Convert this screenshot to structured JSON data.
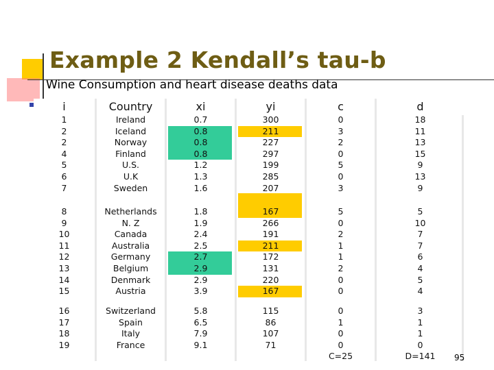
{
  "title": "Example 2   Kendall’s tau-b",
  "subtitle": "Wine Consumption and heart disease deaths data",
  "page_number": "95",
  "colors": {
    "title": "#6e5d14",
    "highlight_yellow": "#ffcc00",
    "highlight_green": "#33cc99"
  },
  "table": {
    "headers": [
      "i",
      "Country",
      "xi",
      "yi",
      "c",
      "d"
    ],
    "rows": [
      [
        "1",
        "Ireland",
        "0.7",
        "300",
        "0",
        "18"
      ],
      [
        "2",
        "Iceland",
        "0.8",
        "211",
        "3",
        "11"
      ],
      [
        "2",
        "Norway",
        "0.8",
        "227",
        "2",
        "13"
      ],
      [
        "4",
        "Finland",
        "0.8",
        "297",
        "0",
        "15"
      ],
      [
        "5",
        "U.S.",
        "1.2",
        "199",
        "5",
        "9"
      ],
      [
        "6",
        "U.K",
        "1.3",
        "285",
        "0",
        "13"
      ],
      [
        "7",
        "Sweden",
        "1.6",
        "207",
        "3",
        "9"
      ],
      [
        "8",
        "Netherlands",
        "1.8",
        "167",
        "5",
        "5"
      ],
      [
        "9",
        "N. Z",
        "1.9",
        "266",
        "0",
        "10"
      ],
      [
        "10",
        "Canada",
        "2.4",
        "191",
        "2",
        "7"
      ],
      [
        "11",
        "Australia",
        "2.5",
        "211",
        "1",
        "7"
      ],
      [
        "12",
        "Germany",
        "2.7",
        "172",
        "1",
        "6"
      ],
      [
        "13",
        "Belgium",
        "2.9",
        "131",
        "2",
        "4"
      ],
      [
        "14",
        "Denmark",
        "2.9",
        "220",
        "0",
        "5"
      ],
      [
        "15",
        "Austria",
        "3.9",
        "167",
        "0",
        "4"
      ],
      [
        "16",
        "Switzerland",
        "5.8",
        "115",
        "0",
        "3"
      ],
      [
        "17",
        "Spain",
        "6.5",
        "86",
        "1",
        "1"
      ],
      [
        "18",
        "Italy",
        "7.9",
        "107",
        "0",
        "1"
      ],
      [
        "19",
        "France",
        "9.1",
        "71",
        "0",
        "0"
      ]
    ],
    "totals": {
      "c": "C=25",
      "d": "D=141"
    }
  }
}
